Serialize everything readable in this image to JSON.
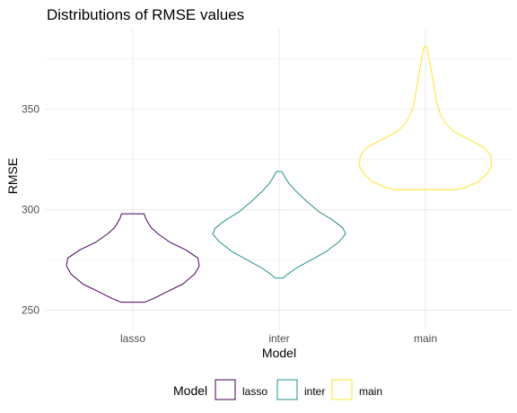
{
  "chart_data": {
    "type": "violin",
    "title": "Distributions of RMSE values",
    "xlabel": "Model",
    "ylabel": "RMSE",
    "categories": [
      "lasso",
      "inter",
      "main"
    ],
    "ylim": [
      240,
      390
    ],
    "yticks": [
      250,
      300,
      350
    ],
    "grid": true,
    "legend": {
      "title": "Model",
      "position": "bottom",
      "entries": [
        "lasso",
        "inter",
        "main"
      ]
    },
    "colors": {
      "lasso": "#440154",
      "inter": "#21908C",
      "main": "#FDE725"
    },
    "series": [
      {
        "name": "lasso",
        "ymin": 254,
        "ymax": 298,
        "profile": [
          [
            254,
            0.18
          ],
          [
            256,
            0.32
          ],
          [
            259,
            0.5
          ],
          [
            263,
            0.75
          ],
          [
            268,
            0.93
          ],
          [
            272,
            1.0
          ],
          [
            276,
            0.98
          ],
          [
            280,
            0.8
          ],
          [
            284,
            0.55
          ],
          [
            288,
            0.38
          ],
          [
            291,
            0.28
          ],
          [
            294,
            0.22
          ],
          [
            296,
            0.19
          ],
          [
            298,
            0.17
          ]
        ]
      },
      {
        "name": "inter",
        "ymin": 266,
        "ymax": 319,
        "profile": [
          [
            266,
            0.06
          ],
          [
            268,
            0.13
          ],
          [
            271,
            0.26
          ],
          [
            275,
            0.48
          ],
          [
            279,
            0.7
          ],
          [
            284,
            0.9
          ],
          [
            288,
            1.0
          ],
          [
            291,
            0.96
          ],
          [
            295,
            0.8
          ],
          [
            299,
            0.6
          ],
          [
            304,
            0.42
          ],
          [
            309,
            0.26
          ],
          [
            313,
            0.15
          ],
          [
            316,
            0.09
          ],
          [
            319,
            0.04
          ]
        ]
      },
      {
        "name": "main",
        "ymin": 310,
        "ymax": 381,
        "profile": [
          [
            310,
            0.46
          ],
          [
            311,
            0.6
          ],
          [
            314,
            0.8
          ],
          [
            318,
            0.93
          ],
          [
            322,
            1.0
          ],
          [
            327,
            0.98
          ],
          [
            331,
            0.88
          ],
          [
            335,
            0.65
          ],
          [
            339,
            0.42
          ],
          [
            343,
            0.3
          ],
          [
            348,
            0.22
          ],
          [
            353,
            0.17
          ],
          [
            359,
            0.14
          ],
          [
            365,
            0.11
          ],
          [
            371,
            0.08
          ],
          [
            376,
            0.05
          ],
          [
            381,
            0.02
          ]
        ]
      }
    ]
  }
}
